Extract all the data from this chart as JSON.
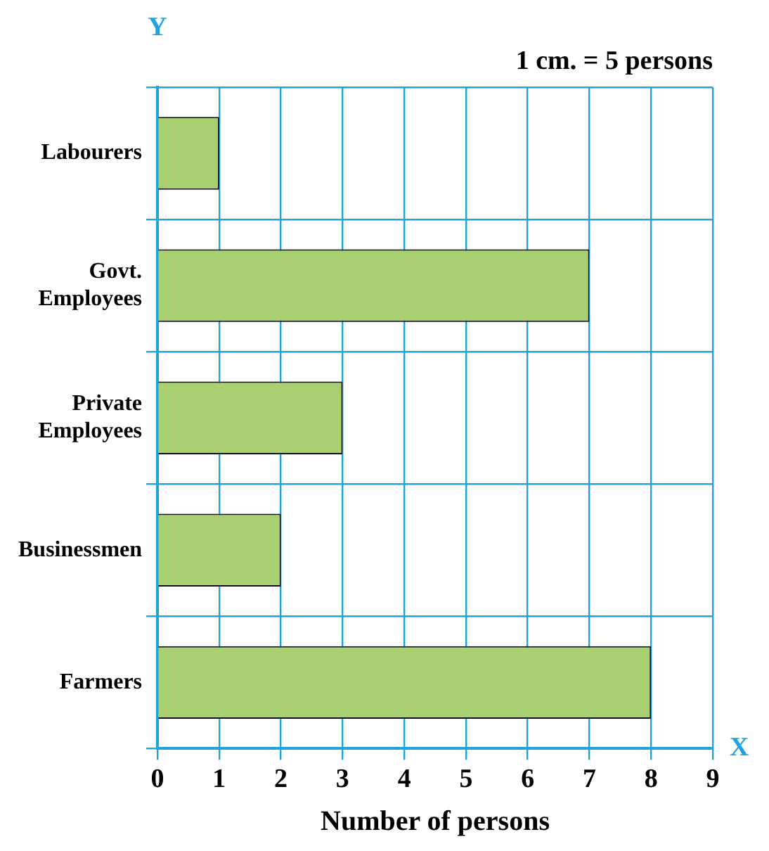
{
  "chart_data": {
    "type": "bar",
    "orientation": "horizontal",
    "xlabel": "Number of persons",
    "annotations": [
      "1 cm. = 5 persons",
      "Y",
      "X"
    ],
    "categories": [
      "Labourers",
      "Govt. Employees",
      "Private Employees",
      "Businessmen",
      "Farmers"
    ],
    "values": [
      1,
      7,
      3,
      2,
      8
    ],
    "color": "#a8d070",
    "xlim": [
      0,
      9
    ],
    "xticks": [
      0,
      1,
      2,
      3,
      4,
      5,
      6,
      7,
      8,
      9
    ],
    "grid": true,
    "legend": false
  }
}
